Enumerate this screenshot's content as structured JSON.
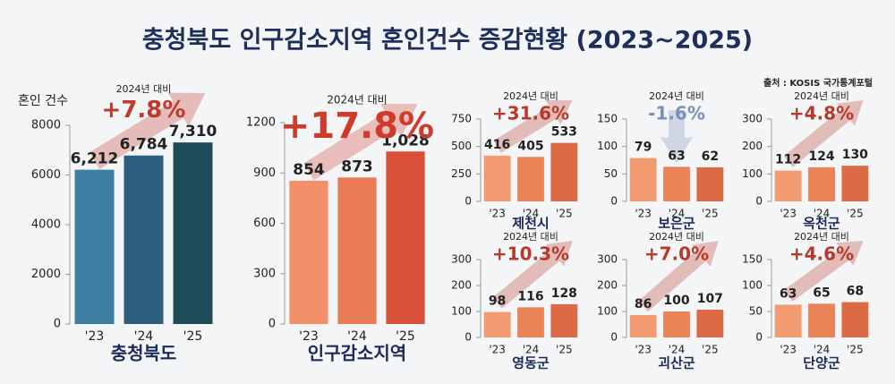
{
  "title": "충청북도 인구감소지역 혼인건수 증감현황 (2023~2025)",
  "source": "출처 : KOSIS 국가통계포털",
  "chart_data": [
    {
      "type": "bar",
      "title": "충청북도",
      "ylabel": "혼인 건수",
      "categories": [
        "'23",
        "'24",
        "'25"
      ],
      "values": [
        6212,
        6784,
        7310
      ],
      "value_labels": [
        "6,212",
        "6,784",
        "7,310"
      ],
      "ylim": [
        0,
        8000
      ],
      "yticks": [
        0,
        2000,
        4000,
        6000,
        8000
      ],
      "colors": [
        "#3f7ea3",
        "#2d5e7e",
        "#1d4b57"
      ],
      "annotations": [
        "2024년 대비",
        "+7.8%"
      ],
      "annotation_color": "#c0392b"
    },
    {
      "type": "bar",
      "title": "인구감소지역",
      "categories": [
        "'23",
        "'24",
        "'25"
      ],
      "values": [
        854,
        873,
        1028
      ],
      "value_labels": [
        "854",
        "873",
        "1,028"
      ],
      "ylim": [
        0,
        1200
      ],
      "yticks": [
        0,
        300,
        600,
        900,
        1200
      ],
      "colors": [
        "#f2906a",
        "#e87a55",
        "#d9503a"
      ],
      "annotations": [
        "2024년 대비",
        "+17.8%"
      ],
      "annotation_color": "#d03a2a"
    },
    {
      "type": "bar",
      "title": "제천시",
      "categories": [
        "'23",
        "'24",
        "'25"
      ],
      "values": [
        416,
        405,
        533
      ],
      "ylim": [
        0,
        750
      ],
      "yticks": [
        0,
        250,
        500,
        750
      ],
      "colors": [
        "#f29a70",
        "#ea8458",
        "#dc6a45"
      ],
      "annotations": [
        "2024년 대비",
        "+31.6%"
      ],
      "annotation_color": "#b8392a"
    },
    {
      "type": "bar",
      "title": "보은군",
      "categories": [
        "'23",
        "'24",
        "'25"
      ],
      "values": [
        79,
        63,
        62
      ],
      "ylim": [
        0,
        150
      ],
      "yticks": [
        0,
        50,
        100,
        150
      ],
      "colors": [
        "#f29a70",
        "#ea8458",
        "#dc6a45"
      ],
      "annotations": [
        "2024년 대비",
        "-1.6%"
      ],
      "annotation_color": "#7a90b8"
    },
    {
      "type": "bar",
      "title": "옥천군",
      "categories": [
        "'23",
        "'24",
        "'25"
      ],
      "values": [
        112,
        124,
        130
      ],
      "ylim": [
        0,
        300
      ],
      "yticks": [
        0,
        100,
        200,
        300
      ],
      "colors": [
        "#f29a70",
        "#ea8458",
        "#dc6a45"
      ],
      "annotations": [
        "2024년 대비",
        "+4.8%"
      ],
      "annotation_color": "#b8392a"
    },
    {
      "type": "bar",
      "title": "영동군",
      "categories": [
        "'23",
        "'24",
        "'25"
      ],
      "values": [
        98,
        116,
        128
      ],
      "ylim": [
        0,
        300
      ],
      "yticks": [
        0,
        100,
        200,
        300
      ],
      "colors": [
        "#f29a70",
        "#ea8458",
        "#dc6a45"
      ],
      "annotations": [
        "2024년 대비",
        "+10.3%"
      ],
      "annotation_color": "#b8392a"
    },
    {
      "type": "bar",
      "title": "괴산군",
      "categories": [
        "'23",
        "'24",
        "'25"
      ],
      "values": [
        86,
        100,
        107
      ],
      "ylim": [
        0,
        300
      ],
      "yticks": [
        0,
        100,
        200,
        300
      ],
      "colors": [
        "#f29a70",
        "#ea8458",
        "#dc6a45"
      ],
      "annotations": [
        "2024년 대비",
        "+7.0%"
      ],
      "annotation_color": "#b8392a"
    },
    {
      "type": "bar",
      "title": "단양군",
      "categories": [
        "'23",
        "'24",
        "'25"
      ],
      "values": [
        63,
        65,
        68
      ],
      "ylim": [
        0,
        150
      ],
      "yticks": [
        0,
        50,
        100,
        150
      ],
      "colors": [
        "#f29a70",
        "#ea8458",
        "#dc6a45"
      ],
      "annotations": [
        "2024년 대비",
        "+4.6%"
      ],
      "annotation_color": "#b8392a"
    }
  ]
}
